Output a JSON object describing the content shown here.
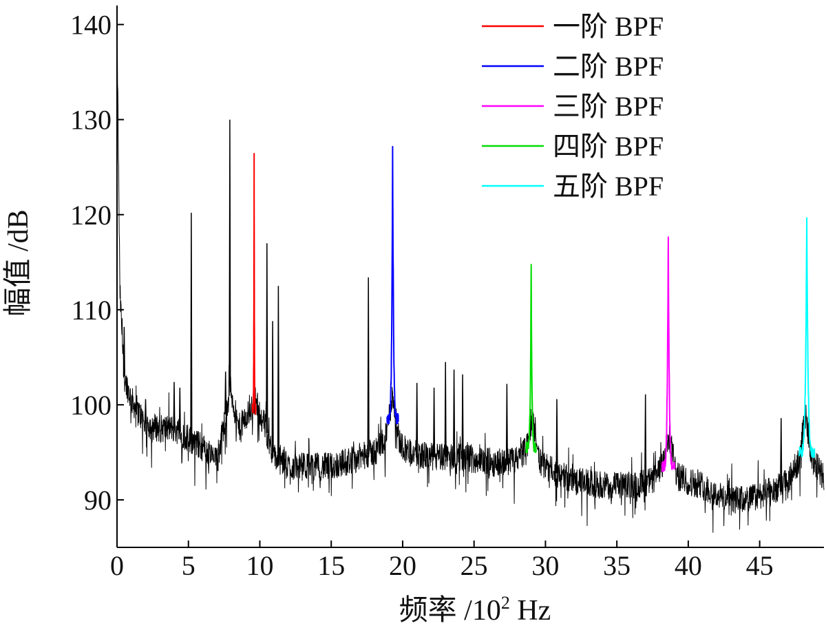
{
  "chart_data": {
    "type": "line",
    "xlabel": "频率 /10",
    "xlabel_sup": "2",
    "xlabel_unit": " Hz",
    "ylabel": "幅值 /dB",
    "xlim": [
      0,
      49.5
    ],
    "ylim": [
      85,
      142
    ],
    "x_ticks": [
      0,
      5,
      10,
      15,
      20,
      25,
      30,
      35,
      40,
      45
    ],
    "x_tick_labels": [
      "0",
      "5",
      "10",
      "15",
      "20",
      "25",
      "30",
      "35",
      "40",
      "45"
    ],
    "y_ticks": [
      90,
      100,
      110,
      120,
      130,
      140
    ],
    "y_tick_labels": [
      "90",
      "100",
      "110",
      "120",
      "130",
      "140"
    ],
    "grid": false,
    "legend_position": "top-right",
    "baseline": [
      [
        0.0,
        140.0
      ],
      [
        0.2,
        112.0
      ],
      [
        0.5,
        103.0
      ],
      [
        1.0,
        100.5
      ],
      [
        2.0,
        98.0
      ],
      [
        3.0,
        97.5
      ],
      [
        4.0,
        97.5
      ],
      [
        5.0,
        96.5
      ],
      [
        6.0,
        95.5
      ],
      [
        7.0,
        94.0
      ],
      [
        7.5,
        98.0
      ],
      [
        7.9,
        102.0
      ],
      [
        8.5,
        97.5
      ],
      [
        9.0,
        98.5
      ],
      [
        9.7,
        100.5
      ],
      [
        10.3,
        98.0
      ],
      [
        11.0,
        94.5
      ],
      [
        12.0,
        93.5
      ],
      [
        13.0,
        93.5
      ],
      [
        14.0,
        93.5
      ],
      [
        15.0,
        93.5
      ],
      [
        16.0,
        94.0
      ],
      [
        17.0,
        94.5
      ],
      [
        18.0,
        95.0
      ],
      [
        18.8,
        96.5
      ],
      [
        19.3,
        101.0
      ],
      [
        19.8,
        96.0
      ],
      [
        20.5,
        95.0
      ],
      [
        22.0,
        94.5
      ],
      [
        24.0,
        94.5
      ],
      [
        26.0,
        94.0
      ],
      [
        27.5,
        94.0
      ],
      [
        28.5,
        95.0
      ],
      [
        29.1,
        98.5
      ],
      [
        29.6,
        94.0
      ],
      [
        30.5,
        93.0
      ],
      [
        32.0,
        92.0
      ],
      [
        34.0,
        91.5
      ],
      [
        36.0,
        91.5
      ],
      [
        37.5,
        92.0
      ],
      [
        38.2,
        93.5
      ],
      [
        38.7,
        96.5
      ],
      [
        39.2,
        92.5
      ],
      [
        40.0,
        92.0
      ],
      [
        41.0,
        91.5
      ],
      [
        42.0,
        90.5
      ],
      [
        43.0,
        90.0
      ],
      [
        44.0,
        90.0
      ],
      [
        45.0,
        90.5
      ],
      [
        46.0,
        91.0
      ],
      [
        47.0,
        92.0
      ],
      [
        47.7,
        94.0
      ],
      [
        48.2,
        99.0
      ],
      [
        48.7,
        94.0
      ],
      [
        49.5,
        92.5
      ]
    ],
    "black_peaks": [
      {
        "x": 0.5,
        "y": 108.2
      },
      {
        "x": 2.0,
        "y": 100.6
      },
      {
        "x": 4.0,
        "y": 102.4
      },
      {
        "x": 4.4,
        "y": 101.8
      },
      {
        "x": 5.2,
        "y": 120.2
      },
      {
        "x": 7.6,
        "y": 103.5
      },
      {
        "x": 7.9,
        "y": 130.0
      },
      {
        "x": 10.5,
        "y": 117.0
      },
      {
        "x": 10.9,
        "y": 108.8
      },
      {
        "x": 11.3,
        "y": 112.5
      },
      {
        "x": 17.6,
        "y": 113.4
      },
      {
        "x": 21.0,
        "y": 102.3
      },
      {
        "x": 22.2,
        "y": 101.8
      },
      {
        "x": 23.0,
        "y": 104.5
      },
      {
        "x": 23.6,
        "y": 103.7
      },
      {
        "x": 24.2,
        "y": 103.2
      },
      {
        "x": 27.3,
        "y": 102.2
      },
      {
        "x": 30.8,
        "y": 100.6
      },
      {
        "x": 37.0,
        "y": 101.1
      },
      {
        "x": 46.5,
        "y": 98.6
      }
    ],
    "series": [
      {
        "name": "一阶 BPF",
        "color": "#ff0000",
        "center": 9.6,
        "peak": 126.0,
        "width": 0.12,
        "base": 99.5
      },
      {
        "name": "二阶 BPF",
        "color": "#0000ff",
        "center": 19.3,
        "peak": 126.8,
        "width": 0.4,
        "base": 98.5
      },
      {
        "name": "三阶 BPF",
        "color": "#ff00ff",
        "center": 38.6,
        "peak": 118.0,
        "width": 0.45,
        "base": 93.5
      },
      {
        "name": "四阶 BPF",
        "color": "#00dd00",
        "center": 29.0,
        "peak": 114.6,
        "width": 0.35,
        "base": 95.5
      },
      {
        "name": "五阶 BPF",
        "color": "#00ffff",
        "center": 48.3,
        "peak": 119.8,
        "width": 0.55,
        "base": 95.0
      }
    ]
  }
}
